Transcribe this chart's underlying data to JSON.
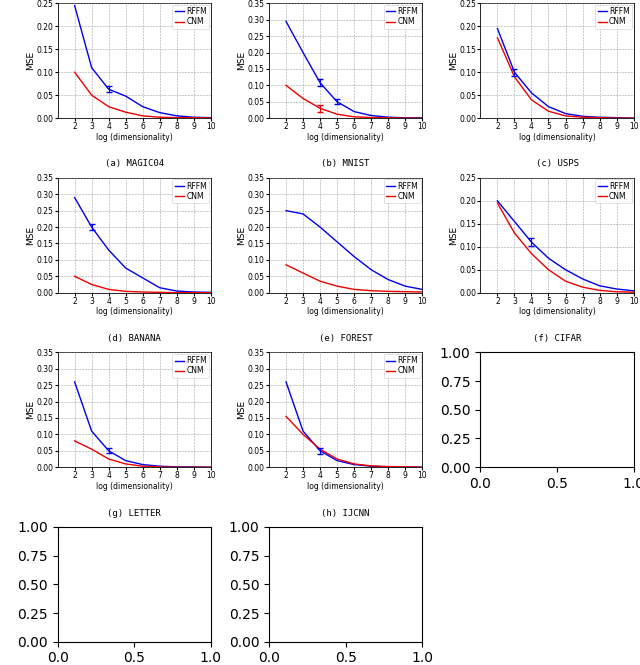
{
  "datasets": {
    "MAGIC04": {
      "title": "(a) MAGIC04",
      "ylim": [
        0,
        0.25
      ],
      "yticks": [
        0,
        0.05,
        0.1,
        0.15,
        0.2,
        0.25
      ],
      "rffm_x": [
        2,
        3,
        4,
        5,
        6,
        7,
        8,
        9,
        10
      ],
      "rffm_y": [
        0.245,
        0.11,
        0.063,
        0.048,
        0.025,
        0.012,
        0.005,
        0.002,
        0.001
      ],
      "rffm_err": [
        0.0,
        0.0,
        0.006,
        0.0,
        0.0,
        0.0,
        0.0,
        0.0,
        0.0
      ],
      "cnm_x": [
        2,
        3,
        4,
        5,
        6,
        7,
        8,
        9,
        10
      ],
      "cnm_y": [
        0.1,
        0.05,
        0.025,
        0.013,
        0.005,
        0.002,
        0.001,
        0.001,
        0.0
      ],
      "cnm_err": [
        0.0,
        0.0,
        0.0,
        0.0,
        0.0,
        0.0,
        0.0,
        0.0,
        0.0
      ]
    },
    "MNIST": {
      "title": "(b) MNIST",
      "ylim": [
        0,
        0.35
      ],
      "yticks": [
        0,
        0.05,
        0.1,
        0.15,
        0.2,
        0.25,
        0.3,
        0.35
      ],
      "rffm_x": [
        2,
        3,
        4,
        5,
        6,
        7,
        8,
        9,
        10
      ],
      "rffm_y": [
        0.295,
        0.2,
        0.108,
        0.05,
        0.02,
        0.008,
        0.003,
        0.001,
        0.001
      ],
      "rffm_err": [
        0.0,
        0.0,
        0.01,
        0.008,
        0.0,
        0.0,
        0.0,
        0.0,
        0.0
      ],
      "cnm_x": [
        2,
        3,
        4,
        5,
        6,
        7,
        8,
        9,
        10
      ],
      "cnm_y": [
        0.1,
        0.06,
        0.03,
        0.012,
        0.004,
        0.002,
        0.001,
        0.0,
        0.0
      ],
      "cnm_err": [
        0.0,
        0.0,
        0.01,
        0.0,
        0.0,
        0.0,
        0.0,
        0.0,
        0.0
      ]
    },
    "USPS": {
      "title": "(c) USPS",
      "ylim": [
        0,
        0.25
      ],
      "yticks": [
        0,
        0.05,
        0.1,
        0.15,
        0.2,
        0.25
      ],
      "rffm_x": [
        2,
        3,
        4,
        5,
        6,
        7,
        8,
        9,
        10
      ],
      "rffm_y": [
        0.195,
        0.1,
        0.055,
        0.025,
        0.01,
        0.004,
        0.002,
        0.001,
        0.0
      ],
      "rffm_err": [
        0.0,
        0.008,
        0.0,
        0.0,
        0.0,
        0.0,
        0.0,
        0.0,
        0.0
      ],
      "cnm_x": [
        2,
        3,
        4,
        5,
        6,
        7,
        8,
        9,
        10
      ],
      "cnm_y": [
        0.175,
        0.09,
        0.04,
        0.015,
        0.005,
        0.002,
        0.001,
        0.0,
        0.0
      ],
      "cnm_err": [
        0.0,
        0.0,
        0.0,
        0.0,
        0.0,
        0.0,
        0.0,
        0.0,
        0.0
      ]
    },
    "BANANA": {
      "title": "(d) BANANA",
      "ylim": [
        0,
        0.35
      ],
      "yticks": [
        0,
        0.05,
        0.1,
        0.15,
        0.2,
        0.25,
        0.3,
        0.35
      ],
      "rffm_x": [
        2,
        3,
        4,
        5,
        6,
        7,
        8,
        9,
        10
      ],
      "rffm_y": [
        0.29,
        0.2,
        0.13,
        0.075,
        0.045,
        0.015,
        0.005,
        0.002,
        0.001
      ],
      "rffm_err": [
        0.0,
        0.01,
        0.0,
        0.0,
        0.0,
        0.0,
        0.0,
        0.0,
        0.0
      ],
      "cnm_x": [
        2,
        3,
        4,
        5,
        6,
        7,
        8,
        9,
        10
      ],
      "cnm_y": [
        0.05,
        0.025,
        0.01,
        0.004,
        0.002,
        0.001,
        0.0,
        0.0,
        0.0
      ],
      "cnm_err": [
        0.0,
        0.0,
        0.0,
        0.0,
        0.0,
        0.0,
        0.0,
        0.0,
        0.0
      ]
    },
    "FOREST": {
      "title": "(e) FOREST",
      "ylim": [
        0,
        0.35
      ],
      "yticks": [
        0,
        0.05,
        0.1,
        0.15,
        0.2,
        0.25,
        0.3,
        0.35
      ],
      "rffm_x": [
        2,
        3,
        4,
        5,
        6,
        7,
        8,
        9,
        10
      ],
      "rffm_y": [
        0.25,
        0.24,
        0.2,
        0.155,
        0.11,
        0.07,
        0.04,
        0.02,
        0.01
      ],
      "rffm_err": [
        0.0,
        0.0,
        0.0,
        0.0,
        0.0,
        0.0,
        0.0,
        0.0,
        0.0
      ],
      "cnm_x": [
        2,
        3,
        4,
        5,
        6,
        7,
        8,
        9,
        10
      ],
      "cnm_y": [
        0.085,
        0.06,
        0.035,
        0.02,
        0.01,
        0.006,
        0.004,
        0.003,
        0.002
      ],
      "cnm_err": [
        0.0,
        0.0,
        0.0,
        0.0,
        0.0,
        0.0,
        0.0,
        0.0,
        0.0
      ]
    },
    "CIFAR": {
      "title": "(f) CIFAR",
      "ylim": [
        0,
        0.25
      ],
      "yticks": [
        0,
        0.05,
        0.1,
        0.15,
        0.2,
        0.25
      ],
      "rffm_x": [
        2,
        3,
        4,
        5,
        6,
        7,
        8,
        9,
        10
      ],
      "rffm_y": [
        0.2,
        0.155,
        0.11,
        0.075,
        0.05,
        0.03,
        0.015,
        0.008,
        0.004
      ],
      "rffm_err": [
        0.0,
        0.0,
        0.008,
        0.0,
        0.0,
        0.0,
        0.0,
        0.0,
        0.0
      ],
      "cnm_x": [
        2,
        3,
        4,
        5,
        6,
        7,
        8,
        9,
        10
      ],
      "cnm_y": [
        0.195,
        0.13,
        0.085,
        0.05,
        0.025,
        0.012,
        0.005,
        0.002,
        0.001
      ],
      "cnm_err": [
        0.0,
        0.0,
        0.0,
        0.0,
        0.0,
        0.0,
        0.0,
        0.0,
        0.0
      ]
    },
    "LETTER": {
      "title": "(g) LETTER",
      "ylim": [
        0,
        0.35
      ],
      "yticks": [
        0,
        0.05,
        0.1,
        0.15,
        0.2,
        0.25,
        0.3,
        0.35
      ],
      "rffm_x": [
        2,
        3,
        4,
        5,
        6,
        7,
        8,
        9,
        10
      ],
      "rffm_y": [
        0.26,
        0.11,
        0.05,
        0.02,
        0.008,
        0.003,
        0.001,
        0.001,
        0.0
      ],
      "rffm_err": [
        0.0,
        0.0,
        0.008,
        0.0,
        0.0,
        0.0,
        0.0,
        0.0,
        0.0
      ],
      "cnm_x": [
        2,
        3,
        4,
        5,
        6,
        7,
        8,
        9,
        10
      ],
      "cnm_y": [
        0.08,
        0.055,
        0.025,
        0.01,
        0.003,
        0.001,
        0.0,
        0.0,
        0.0
      ],
      "cnm_err": [
        0.0,
        0.0,
        0.0,
        0.0,
        0.0,
        0.0,
        0.0,
        0.0,
        0.0
      ]
    },
    "IJCNN": {
      "title": "(h) IJCNN",
      "ylim": [
        0,
        0.35
      ],
      "yticks": [
        0,
        0.05,
        0.1,
        0.15,
        0.2,
        0.25,
        0.3,
        0.35
      ],
      "rffm_x": [
        2,
        3,
        4,
        5,
        6,
        7,
        8,
        9,
        10
      ],
      "rffm_y": [
        0.26,
        0.11,
        0.05,
        0.02,
        0.008,
        0.003,
        0.001,
        0.001,
        0.0
      ],
      "rffm_err": [
        0.0,
        0.0,
        0.01,
        0.0,
        0.0,
        0.0,
        0.0,
        0.0,
        0.0
      ],
      "cnm_x": [
        2,
        3,
        4,
        5,
        6,
        7,
        8,
        9,
        10
      ],
      "cnm_y": [
        0.155,
        0.1,
        0.055,
        0.025,
        0.01,
        0.004,
        0.002,
        0.001,
        0.0
      ],
      "cnm_err": [
        0.0,
        0.0,
        0.0,
        0.0,
        0.0,
        0.0,
        0.0,
        0.0,
        0.0
      ]
    }
  },
  "rffm_color": "#0000EE",
  "cnm_color": "#EE0000",
  "xlabel": "log (dimensionality)",
  "ylabel": "MSE",
  "xlim": [
    1,
    10
  ],
  "xticks": [
    2,
    3,
    4,
    5,
    6,
    7,
    8,
    9,
    10
  ],
  "order": [
    "MAGIC04",
    "MNIST",
    "USPS",
    "BANANA",
    "FOREST",
    "CIFAR",
    "LETTER",
    "IJCNN"
  ]
}
